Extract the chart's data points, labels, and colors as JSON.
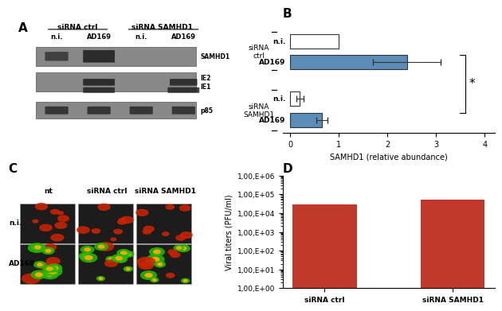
{
  "panel_B": {
    "title": "B",
    "bars": [
      {
        "label": "n.i.",
        "group": "siRNA ctrl",
        "value": 1.0,
        "error": 0.0,
        "color": "#ffffff",
        "edgecolor": "#333333"
      },
      {
        "label": "AD169",
        "group": "siRNA ctrl",
        "value": 2.4,
        "error": 0.7,
        "color": "#5b8db8",
        "edgecolor": "#333333"
      },
      {
        "label": "n.i.",
        "group": "siRNA SAMHD1",
        "value": 0.2,
        "error": 0.07,
        "color": "#ffffff",
        "edgecolor": "#333333"
      },
      {
        "label": "AD169",
        "group": "siRNA SAMHD1",
        "value": 0.65,
        "error": 0.12,
        "color": "#5b8db8",
        "edgecolor": "#333333"
      }
    ],
    "xlabel": "SAMHD1 (relative abundance)",
    "xlim": [
      0,
      4
    ],
    "xticks": [
      0,
      1,
      2,
      3,
      4
    ],
    "significance_star": "*"
  },
  "panel_D": {
    "title": "D",
    "categories": [
      "siRNA ctrl",
      "siRNA SAMHD1"
    ],
    "values": [
      30000,
      50000
    ],
    "bar_color": "#c0392b",
    "ylabel": "Viral titers (PFU/ml)",
    "yticklabels": [
      "1,00,E+00",
      "1,00,E+01",
      "1,00,E+02",
      "1,00,E+03",
      "1,00,E+04",
      "1,00,E+05",
      "1,00,E+06"
    ],
    "yticks": [
      1.0,
      10.0,
      100.0,
      1000.0,
      10000.0,
      100000.0,
      1000000.0
    ],
    "ylim": [
      1.0,
      1000000.0
    ]
  },
  "panel_A": {
    "title": "A",
    "header_labels": [
      "siRNA ctrl",
      "siRNA SAMHD1"
    ],
    "col_labels": [
      "n.i.",
      "AD169",
      "n.i.",
      "AD169"
    ],
    "row_labels": [
      "SAMHD1",
      "IE2\nIE1",
      "p85"
    ]
  },
  "panel_C": {
    "title": "C",
    "col_labels": [
      "nt",
      "siRNA ctrl",
      "siRNA SAMHD1"
    ],
    "row_labels": [
      "n.i.",
      "AD169"
    ]
  },
  "bg_color": "#ffffff"
}
